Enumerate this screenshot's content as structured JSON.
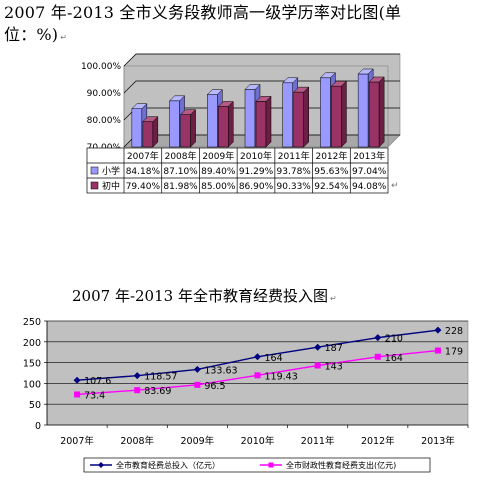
{
  "title1_line1": "2007 年-2013 全市义务段教师高一级学历率对比图(单",
  "title1_line2": "位：%)",
  "title2": "2007 年-2013 年全市教育经费投入图",
  "return_mark": "↵",
  "colors": {
    "primary": "#9999ff",
    "middle": "#993366",
    "invest": "#000080",
    "fiscal": "#ff00ff",
    "panel": "#c0c0c0"
  },
  "chart_data": [
    {
      "type": "bar",
      "categories": [
        "2007年",
        "2008年",
        "2009年",
        "2010年",
        "2011年",
        "2012年",
        "2013年"
      ],
      "ylim": [
        70,
        100
      ],
      "yticks": [
        "70.00%",
        "80.00%",
        "90.00%",
        "100.00%"
      ],
      "ytick_values": [
        70,
        80,
        90,
        100
      ],
      "series": [
        {
          "name": "小学",
          "values": [
            84.18,
            87.1,
            89.4,
            91.29,
            93.78,
            95.63,
            97.04
          ],
          "labels": [
            "84.18%",
            "87.10%",
            "89.40%",
            "91.29%",
            "93.78%",
            "95.63%",
            "97.04%"
          ]
        },
        {
          "name": "初中",
          "values": [
            79.4,
            81.98,
            85.0,
            86.9,
            90.33,
            92.54,
            94.08
          ],
          "labels": [
            "79.40%",
            "81.98%",
            "85.00%",
            "86.90%",
            "90.33%",
            "92.54%",
            "94.08%"
          ]
        }
      ]
    },
    {
      "type": "line",
      "categories": [
        "2007年",
        "2008年",
        "2009年",
        "2010年",
        "2011年",
        "2012年",
        "2013年"
      ],
      "ylim": [
        0,
        250
      ],
      "yticks": [
        "0",
        "50",
        "100",
        "150",
        "200",
        "250"
      ],
      "ytick_values": [
        0,
        50,
        100,
        150,
        200,
        250
      ],
      "series": [
        {
          "name": "全市教育经费总投入（亿元）",
          "values": [
            107.6,
            118.57,
            133.63,
            164,
            187,
            210,
            228
          ],
          "labels": [
            "107.6",
            "118.57",
            "133.63",
            "164",
            "187",
            "210",
            "228"
          ]
        },
        {
          "name": "全市财政性教育经费支出(亿元)",
          "values": [
            73.4,
            83.69,
            96.5,
            119.43,
            143,
            164,
            179
          ],
          "labels": [
            "73.4",
            "83.69",
            "96.5",
            "119.43",
            "143",
            "164",
            "179"
          ]
        }
      ]
    }
  ]
}
